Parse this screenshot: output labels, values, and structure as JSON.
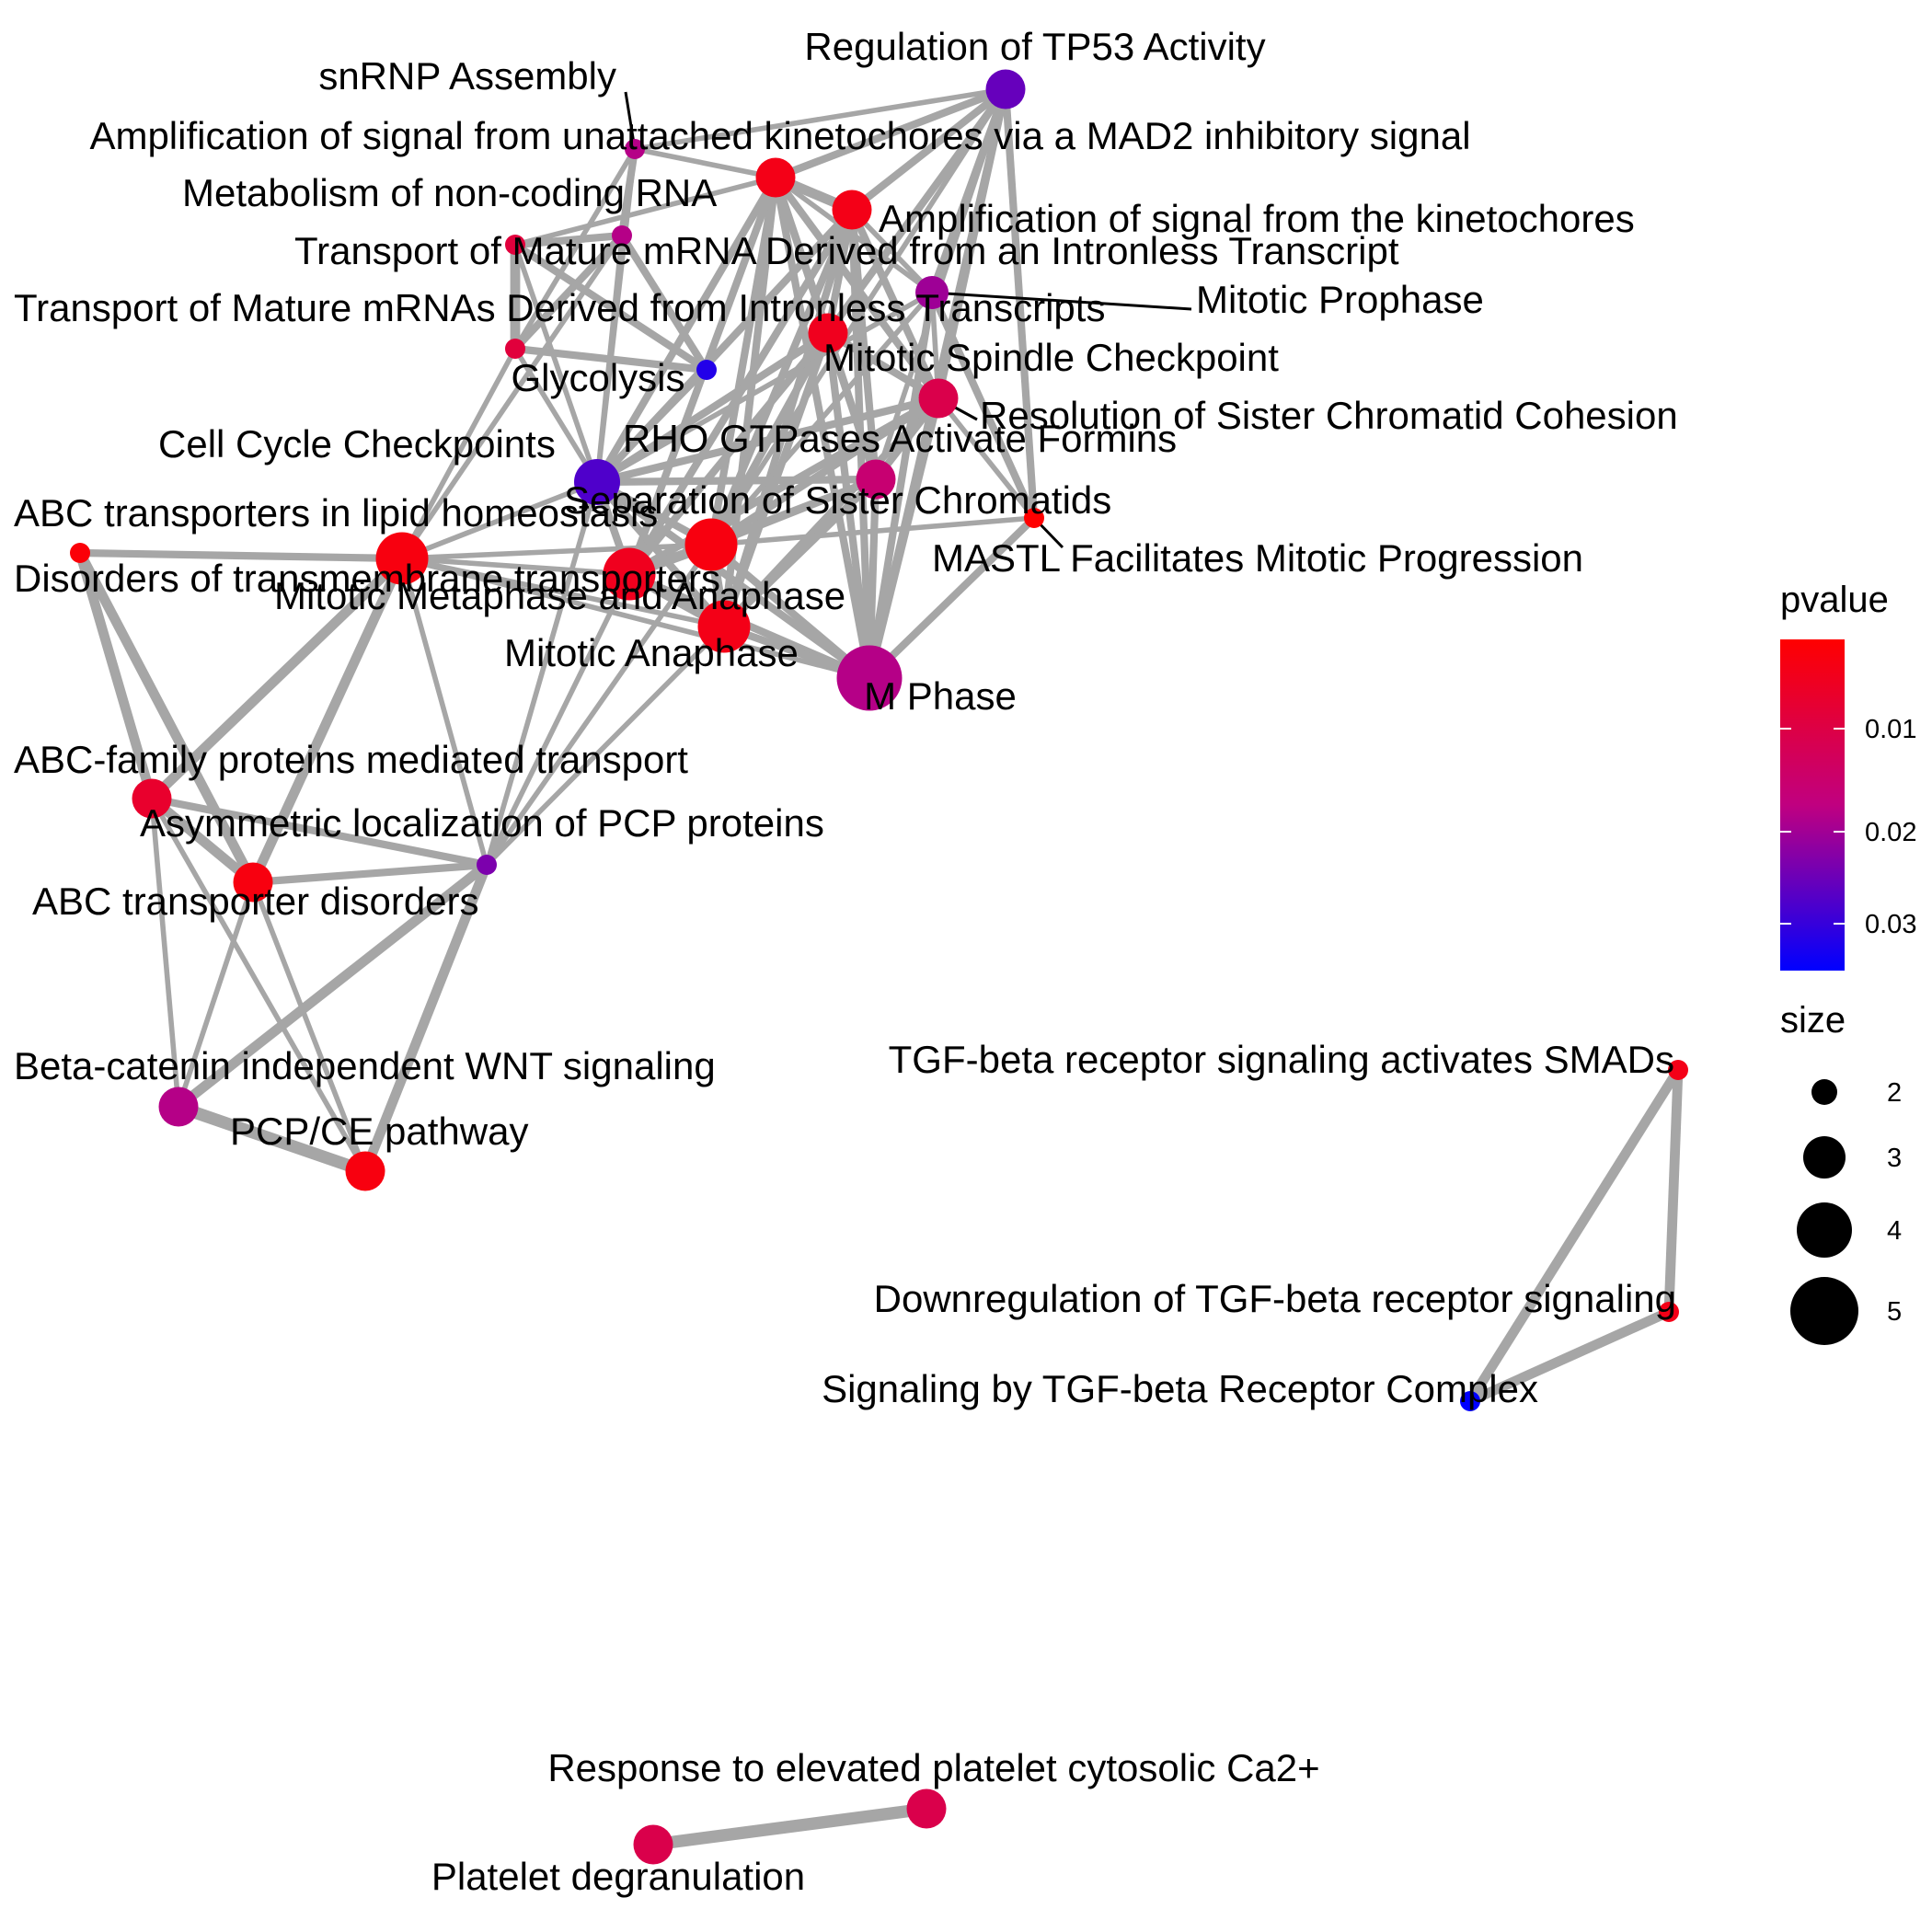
{
  "legend": {
    "color_title": "pvalue",
    "color_ticks": [
      "0.01",
      "0.02",
      "0.03"
    ],
    "color_range": [
      "#ff0000",
      "#0000ff"
    ],
    "size_title": "size",
    "size_ticks": [
      "2",
      "3",
      "4",
      "5"
    ]
  },
  "edge_color": "#a6a6a6",
  "nodes": [
    {
      "id": "regulation-of-tp53-activity",
      "label": "Regulation of TP53 Activity",
      "pvalue": 0.027,
      "size": 3
    },
    {
      "id": "snrnp-assembly",
      "label": "snRNP Assembly",
      "pvalue": 0.02,
      "size": 1.5
    },
    {
      "id": "amplification-mad2",
      "label": "Amplification  of signal from unattached  kinetochores via a MAD2  inhibitory signal",
      "pvalue": 0.005,
      "size": 3
    },
    {
      "id": "metabolism-of-non-coding-rna",
      "label": "Metabolism of non-coding RNA",
      "pvalue": 0.02,
      "size": 1.5
    },
    {
      "id": "amplification-kinetochores",
      "label": "Amplification of signal from the kinetochores",
      "pvalue": 0.005,
      "size": 3
    },
    {
      "id": "transport-mature-mrna-single",
      "label": "Transport of Mature mRNA Derived from an Intronless Transcript",
      "pvalue": 0.01,
      "size": 1.5
    },
    {
      "id": "mitotic-prophase",
      "label": "Mitotic Prophase",
      "pvalue": 0.022,
      "size": 2.5
    },
    {
      "id": "transport-mature-mrnas-plural",
      "label": "Transport of Mature mRNAs Derived from Intronless Transcripts",
      "pvalue": 0.01,
      "size": 1.5
    },
    {
      "id": "mitotic-spindle-checkpoint",
      "label": "Mitotic Spindle Checkpoint",
      "pvalue": 0.006,
      "size": 3
    },
    {
      "id": "glycolysis",
      "label": "Glycolysis",
      "pvalue": 0.033,
      "size": 1.5
    },
    {
      "id": "resolution-of-sister-chromatid-cohesion",
      "label": "Resolution of Sister Chromatid Cohesion",
      "pvalue": 0.012,
      "size": 3
    },
    {
      "id": "cell-cycle-checkpoints",
      "label": "Cell Cycle Checkpoints",
      "pvalue": 0.029,
      "size": 3.5
    },
    {
      "id": "rho-gtpases-activate-formins",
      "label": "RHO GTPases Activate Formins",
      "pvalue": 0.017,
      "size": 3
    },
    {
      "id": "separation-of-sister-chromatids",
      "label": "Separation of Sister Chromatids",
      "pvalue": 0.004,
      "size": 4
    },
    {
      "id": "mastl",
      "label": "MASTL Facilitates Mitotic Progression",
      "pvalue": 0.002,
      "size": 1.5
    },
    {
      "id": "abc-transporters-lipid",
      "label": "ABC transporters in lipid homeostasis",
      "pvalue": 0.003,
      "size": 1.5
    },
    {
      "id": "disorders-transmembrane",
      "label": "Disorders of transmembrane transporters",
      "pvalue": 0.004,
      "size": 4
    },
    {
      "id": "mitotic-metaphase-anaphase",
      "label": "Mitotic Metaphase and Anaphase",
      "pvalue": 0.006,
      "size": 4
    },
    {
      "id": "mitotic-anaphase",
      "label": "Mitotic Anaphase",
      "pvalue": 0.005,
      "size": 4
    },
    {
      "id": "m-phase",
      "label": "M Phase",
      "pvalue": 0.02,
      "size": 5
    },
    {
      "id": "abc-family-proteins",
      "label": "ABC-family proteins mediated transport",
      "pvalue": 0.008,
      "size": 3
    },
    {
      "id": "asymmetric-pcp",
      "label": "Asymmetric localization of PCP proteins",
      "pvalue": 0.025,
      "size": 1.5
    },
    {
      "id": "abc-transporter-disorders",
      "label": "ABC transporter disorders",
      "pvalue": 0.004,
      "size": 3
    },
    {
      "id": "beta-catenin-wnt",
      "label": "Beta-catenin independent WNT signaling",
      "pvalue": 0.02,
      "size": 3
    },
    {
      "id": "pcp-ce-pathway",
      "label": "PCP/CE pathway",
      "pvalue": 0.004,
      "size": 3
    },
    {
      "id": "tgf-beta-smads",
      "label": "TGF-beta receptor signaling activates SMADs",
      "pvalue": 0.005,
      "size": 1.5
    },
    {
      "id": "downregulation-tgf-beta",
      "label": "Downregulation of TGF-beta receptor signaling",
      "pvalue": 0.005,
      "size": 1.5
    },
    {
      "id": "signaling-tgf-beta-complex",
      "label": "Signaling by TGF-beta Receptor Complex",
      "pvalue": 0.036,
      "size": 1.5
    },
    {
      "id": "response-platelet-ca2",
      "label": "Response to elevated platelet cytosolic Ca2+",
      "pvalue": 0.012,
      "size": 3
    },
    {
      "id": "platelet-degranulation",
      "label": "Platelet degranulation",
      "pvalue": 0.012,
      "size": 3
    }
  ],
  "edges": [
    [
      "regulation-of-tp53-activity",
      "snrnp-assembly",
      1
    ],
    [
      "regulation-of-tp53-activity",
      "amplification-mad2",
      2
    ],
    [
      "regulation-of-tp53-activity",
      "amplification-kinetochores",
      2
    ],
    [
      "regulation-of-tp53-activity",
      "mitotic-prophase",
      2
    ],
    [
      "regulation-of-tp53-activity",
      "mitotic-spindle-checkpoint",
      2
    ],
    [
      "regulation-of-tp53-activity",
      "resolution-of-sister-chromatid-cohesion",
      2
    ],
    [
      "regulation-of-tp53-activity",
      "mastl",
      2
    ],
    [
      "regulation-of-tp53-activity",
      "m-phase",
      2
    ],
    [
      "regulation-of-tp53-activity",
      "separation-of-sister-chromatids",
      1
    ],
    [
      "regulation-of-tp53-activity",
      "rho-gtpases-activate-formins",
      1
    ],
    [
      "snrnp-assembly",
      "metabolism-of-non-coding-rna",
      2
    ],
    [
      "snrnp-assembly",
      "amplification-mad2",
      1
    ],
    [
      "snrnp-assembly",
      "transport-mature-mrnas-plural",
      1
    ],
    [
      "snrnp-assembly",
      "cell-cycle-checkpoints",
      1
    ],
    [
      "metabolism-of-non-coding-rna",
      "transport-mature-mrnas-plural",
      2
    ],
    [
      "metabolism-of-non-coding-rna",
      "transport-mature-mrna-single",
      2
    ],
    [
      "metabolism-of-non-coding-rna",
      "glycolysis",
      2
    ],
    [
      "metabolism-of-non-coding-rna",
      "cell-cycle-checkpoints",
      1
    ],
    [
      "metabolism-of-non-coding-rna",
      "disorders-transmembrane",
      1
    ],
    [
      "transport-mature-mrnas-plural",
      "transport-mature-mrna-single",
      3
    ],
    [
      "transport-mature-mrnas-plural",
      "glycolysis",
      2
    ],
    [
      "transport-mature-mrnas-plural",
      "disorders-transmembrane",
      1
    ],
    [
      "transport-mature-mrnas-plural",
      "cell-cycle-checkpoints",
      1
    ],
    [
      "transport-mature-mrna-single",
      "glycolysis",
      2
    ],
    [
      "transport-mature-mrna-single",
      "cell-cycle-checkpoints",
      1
    ],
    [
      "transport-mature-mrna-single",
      "amplification-mad2",
      1
    ],
    [
      "amplification-mad2",
      "amplification-kinetochores",
      3
    ],
    [
      "amplification-mad2",
      "mitotic-spindle-checkpoint",
      2
    ],
    [
      "amplification-mad2",
      "resolution-of-sister-chromatid-cohesion",
      2
    ],
    [
      "amplification-mad2",
      "mitotic-prophase",
      1
    ],
    [
      "amplification-mad2",
      "cell-cycle-checkpoints",
      2
    ],
    [
      "amplification-mad2",
      "separation-of-sister-chromatids",
      2
    ],
    [
      "amplification-mad2",
      "mitotic-metaphase-anaphase",
      2
    ],
    [
      "amplification-mad2",
      "mitotic-anaphase",
      2
    ],
    [
      "amplification-mad2",
      "m-phase",
      2
    ],
    [
      "amplification-mad2",
      "rho-gtpases-activate-formins",
      2
    ],
    [
      "amplification-kinetochores",
      "mitotic-spindle-checkpoint",
      2
    ],
    [
      "amplification-kinetochores",
      "resolution-of-sister-chromatid-cohesion",
      2
    ],
    [
      "amplification-kinetochores",
      "mitotic-prophase",
      1
    ],
    [
      "amplification-kinetochores",
      "cell-cycle-checkpoints",
      2
    ],
    [
      "amplification-kinetochores",
      "separation-of-sister-chromatids",
      2
    ],
    [
      "amplification-kinetochores",
      "mitotic-metaphase-anaphase",
      2
    ],
    [
      "amplification-kinetochores",
      "mitotic-anaphase",
      2
    ],
    [
      "amplification-kinetochores",
      "m-phase",
      2
    ],
    [
      "amplification-kinetochores",
      "rho-gtpases-activate-formins",
      2
    ],
    [
      "mitotic-prophase",
      "m-phase",
      2
    ],
    [
      "mitotic-prophase",
      "mastl",
      2
    ],
    [
      "mitotic-prophase",
      "resolution-of-sister-chromatid-cohesion",
      1
    ],
    [
      "mitotic-prophase",
      "separation-of-sister-chromatids",
      1
    ],
    [
      "mitotic-prophase",
      "cell-cycle-checkpoints",
      1
    ],
    [
      "mitotic-spindle-checkpoint",
      "resolution-of-sister-chromatid-cohesion",
      2
    ],
    [
      "mitotic-spindle-checkpoint",
      "cell-cycle-checkpoints",
      2
    ],
    [
      "mitotic-spindle-checkpoint",
      "separation-of-sister-chromatids",
      2
    ],
    [
      "mitotic-spindle-checkpoint",
      "mitotic-metaphase-anaphase",
      2
    ],
    [
      "mitotic-spindle-checkpoint",
      "mitotic-anaphase",
      2
    ],
    [
      "mitotic-spindle-checkpoint",
      "m-phase",
      2
    ],
    [
      "mitotic-spindle-checkpoint",
      "rho-gtpases-activate-formins",
      2
    ],
    [
      "resolution-of-sister-chromatid-cohesion",
      "separation-of-sister-chromatids",
      2
    ],
    [
      "resolution-of-sister-chromatid-cohesion",
      "mitotic-metaphase-anaphase",
      2
    ],
    [
      "resolution-of-sister-chromatid-cohesion",
      "mitotic-anaphase",
      2
    ],
    [
      "resolution-of-sister-chromatid-cohesion",
      "m-phase",
      2
    ],
    [
      "resolution-of-sister-chromatid-cohesion",
      "rho-gtpases-activate-formins",
      2
    ],
    [
      "resolution-of-sister-chromatid-cohesion",
      "cell-cycle-checkpoints",
      2
    ],
    [
      "resolution-of-sister-chromatid-cohesion",
      "mastl",
      1
    ],
    [
      "cell-cycle-checkpoints",
      "separation-of-sister-chromatids",
      2
    ],
    [
      "cell-cycle-checkpoints",
      "mitotic-metaphase-anaphase",
      2
    ],
    [
      "cell-cycle-checkpoints",
      "mitotic-anaphase",
      2
    ],
    [
      "cell-cycle-checkpoints",
      "m-phase",
      2
    ],
    [
      "cell-cycle-checkpoints",
      "rho-gtpases-activate-formins",
      2
    ],
    [
      "cell-cycle-checkpoints",
      "disorders-transmembrane",
      1
    ],
    [
      "cell-cycle-checkpoints",
      "glycolysis",
      1
    ],
    [
      "rho-gtpases-activate-formins",
      "separation-of-sister-chromatids",
      2
    ],
    [
      "rho-gtpases-activate-formins",
      "mitotic-metaphase-anaphase",
      2
    ],
    [
      "rho-gtpases-activate-formins",
      "mitotic-anaphase",
      2
    ],
    [
      "rho-gtpases-activate-formins",
      "m-phase",
      2
    ],
    [
      "separation-of-sister-chromatids",
      "mitotic-metaphase-anaphase",
      3
    ],
    [
      "separation-of-sister-chromatids",
      "mitotic-anaphase",
      3
    ],
    [
      "separation-of-sister-chromatids",
      "m-phase",
      2
    ],
    [
      "separation-of-sister-chromatids",
      "mastl",
      1
    ],
    [
      "mitotic-metaphase-anaphase",
      "mitotic-anaphase",
      3
    ],
    [
      "mitotic-metaphase-anaphase",
      "m-phase",
      2
    ],
    [
      "mitotic-anaphase",
      "m-phase",
      2
    ],
    [
      "m-phase",
      "mastl",
      2
    ],
    [
      "disorders-transmembrane",
      "mitotic-metaphase-anaphase",
      1
    ],
    [
      "disorders-transmembrane",
      "mitotic-anaphase",
      1
    ],
    [
      "disorders-transmembrane",
      "separation-of-sister-chromatids",
      1
    ],
    [
      "disorders-transmembrane",
      "m-phase",
      1
    ],
    [
      "disorders-transmembrane",
      "abc-transporters-lipid",
      2
    ],
    [
      "disorders-transmembrane",
      "abc-family-proteins",
      3
    ],
    [
      "disorders-transmembrane",
      "abc-transporter-disorders",
      3
    ],
    [
      "disorders-transmembrane",
      "asymmetric-pcp",
      1
    ],
    [
      "abc-transporters-lipid",
      "abc-family-proteins",
      3
    ],
    [
      "abc-transporters-lipid",
      "abc-transporter-disorders",
      3
    ],
    [
      "abc-family-proteins",
      "abc-transporter-disorders",
      3
    ],
    [
      "abc-family-proteins",
      "asymmetric-pcp",
      2
    ],
    [
      "abc-family-proteins",
      "beta-catenin-wnt",
      1
    ],
    [
      "abc-family-proteins",
      "pcp-ce-pathway",
      1
    ],
    [
      "abc-transporter-disorders",
      "asymmetric-pcp",
      2
    ],
    [
      "abc-transporter-disorders",
      "beta-catenin-wnt",
      1
    ],
    [
      "abc-transporter-disorders",
      "pcp-ce-pathway",
      1
    ],
    [
      "asymmetric-pcp",
      "beta-catenin-wnt",
      3
    ],
    [
      "asymmetric-pcp",
      "pcp-ce-pathway",
      3
    ],
    [
      "asymmetric-pcp",
      "mitotic-anaphase",
      1
    ],
    [
      "asymmetric-pcp",
      "mitotic-metaphase-anaphase",
      1
    ],
    [
      "asymmetric-pcp",
      "separation-of-sister-chromatids",
      1
    ],
    [
      "asymmetric-pcp",
      "cell-cycle-checkpoints",
      1
    ],
    [
      "beta-catenin-wnt",
      "pcp-ce-pathway",
      4
    ],
    [
      "tgf-beta-smads",
      "downregulation-tgf-beta",
      3
    ],
    [
      "tgf-beta-smads",
      "signaling-tgf-beta-complex",
      3
    ],
    [
      "downregulation-tgf-beta",
      "signaling-tgf-beta-complex",
      3
    ],
    [
      "response-platelet-ca2",
      "platelet-degranulation",
      4
    ]
  ]
}
